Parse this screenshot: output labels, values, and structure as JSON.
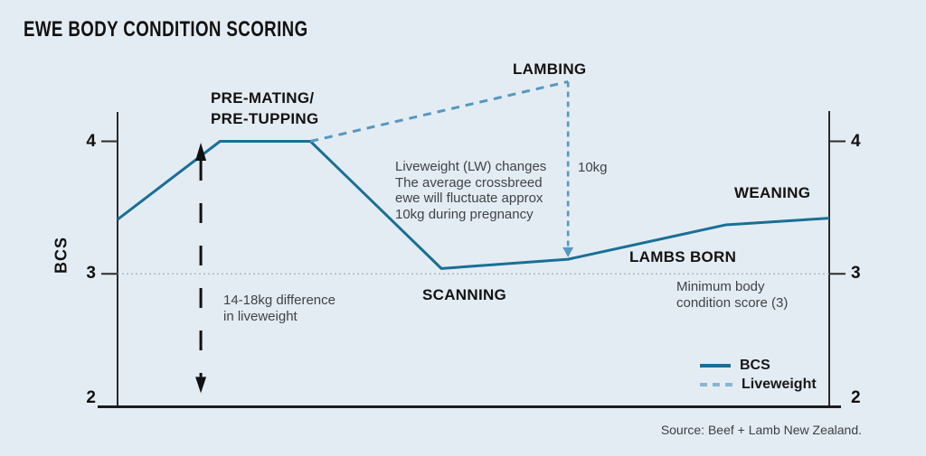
{
  "title": "EWE BODY CONDITION SCORING",
  "y_axis": {
    "label": "BCS",
    "tick_top": "4",
    "tick_mid": "3",
    "tick_bottom": "2"
  },
  "stage_labels": {
    "pre_mating": [
      "PRE-MATING/",
      "PRE-TUPPING"
    ],
    "lambing": "LAMBING",
    "scanning": "SCANNING",
    "lambs_born": "LAMBS BORN",
    "weaning": "WEANING"
  },
  "annotations": {
    "lw_note": [
      "Liveweight (LW) changes",
      "The average crossbreed",
      "ewe will fluctuate approx",
      "10kg during pregnancy"
    ],
    "drop_label": "10kg",
    "diff_note": [
      "14-18kg difference",
      "in liveweight"
    ],
    "min_note": [
      "Minimum body",
      "condition score (3)"
    ]
  },
  "legend": {
    "bcs": "BCS",
    "liveweight": "Liveweight"
  },
  "source": "Source: Beef + Lamb New Zealand.",
  "colors": {
    "background": "#e4ecf3",
    "bcs_line": "#1a6f96",
    "liveweight_dash": "#5598bf",
    "legend_liveweight_dash": "#8ab5d2",
    "axis": "#2b2b2b",
    "minimum_line": "#a9adb2",
    "arrow_black": "#111111",
    "dark_text": "#141414",
    "gray_text": "#3f4347"
  },
  "chart_data": {
    "type": "line",
    "title": "EWE BODY CONDITION SCORING",
    "ylabel": "BCS",
    "yticks": [
      4,
      3,
      2
    ],
    "ylim": [
      2,
      4.6
    ],
    "grid": false,
    "legend_position": "bottom-right",
    "series": [
      {
        "name": "BCS",
        "style": "solid",
        "color": "#1a6f96",
        "points": [
          {
            "x": 0.0,
            "bcs": 3.41
          },
          {
            "x": 0.144,
            "bcs": 4.0,
            "stage": "PRE-MATING/PRE-TUPPING"
          },
          {
            "x": 0.271,
            "bcs": 4.0
          },
          {
            "x": 0.455,
            "bcs": 3.04,
            "stage": "SCANNING"
          },
          {
            "x": 0.633,
            "bcs": 3.11,
            "stage": "LAMBS BORN"
          },
          {
            "x": 0.855,
            "bcs": 3.37
          },
          {
            "x": 1.0,
            "bcs": 3.42,
            "stage": "WEANING"
          }
        ]
      },
      {
        "name": "Liveweight",
        "style": "dashed",
        "color": "#5598bf",
        "points": [
          {
            "x": 0.271,
            "bcs": 4.0
          },
          {
            "x": 0.633,
            "bcs": 4.45,
            "stage": "LAMBING"
          }
        ]
      }
    ],
    "drop_arrow": {
      "x": 0.633,
      "from_bcs": 4.45,
      "to_bcs": 3.2,
      "label": "10kg"
    },
    "range_arrow": {
      "x": 0.117,
      "top_bcs": 3.99,
      "bottom_bcs": 2.1,
      "label": "14-18kg difference in liveweight"
    },
    "reference_line": {
      "bcs": 3,
      "style": "dotted",
      "label": "Minimum body condition score (3)"
    }
  }
}
